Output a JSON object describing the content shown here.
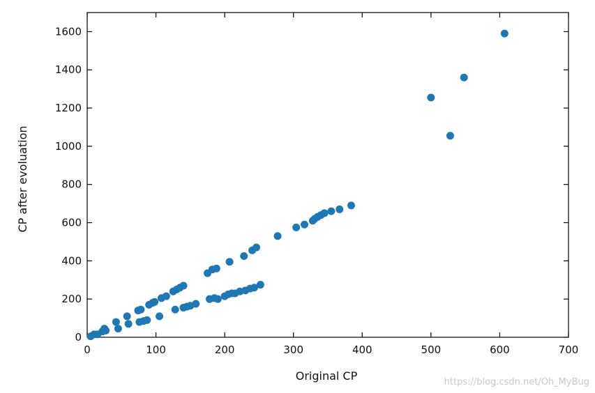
{
  "chart_data": {
    "type": "scatter",
    "title": "",
    "xlabel": "Original CP",
    "ylabel": "CP after evoluation",
    "xlim": [
      0,
      700
    ],
    "ylim": [
      0,
      1700
    ],
    "xticks": [
      0,
      100,
      200,
      300,
      400,
      500,
      600,
      700
    ],
    "yticks": [
      0,
      200,
      400,
      600,
      800,
      1000,
      1200,
      1400,
      1600
    ],
    "grid": false,
    "legend": "none",
    "marker_color": "#1f77b4",
    "series": [
      {
        "points": [
          [
            5,
            5
          ],
          [
            10,
            15
          ],
          [
            15,
            15
          ],
          [
            22,
            30
          ],
          [
            25,
            45
          ],
          [
            27,
            35
          ],
          [
            42,
            80
          ],
          [
            45,
            45
          ],
          [
            58,
            110
          ],
          [
            60,
            70
          ],
          [
            74,
            140
          ],
          [
            78,
            145
          ],
          [
            76,
            80
          ],
          [
            82,
            85
          ],
          [
            87,
            90
          ],
          [
            90,
            170
          ],
          [
            95,
            180
          ],
          [
            98,
            185
          ],
          [
            105,
            110
          ],
          [
            108,
            205
          ],
          [
            115,
            215
          ],
          [
            125,
            240
          ],
          [
            130,
            250
          ],
          [
            135,
            260
          ],
          [
            140,
            270
          ],
          [
            128,
            145
          ],
          [
            140,
            155
          ],
          [
            145,
            160
          ],
          [
            150,
            165
          ],
          [
            158,
            175
          ],
          [
            175,
            335
          ],
          [
            182,
            355
          ],
          [
            188,
            360
          ],
          [
            178,
            200
          ],
          [
            185,
            205
          ],
          [
            190,
            200
          ],
          [
            200,
            215
          ],
          [
            205,
            225
          ],
          [
            210,
            230
          ],
          [
            215,
            230
          ],
          [
            222,
            240
          ],
          [
            207,
            395
          ],
          [
            228,
            425
          ],
          [
            240,
            455
          ],
          [
            246,
            470
          ],
          [
            230,
            245
          ],
          [
            237,
            255
          ],
          [
            243,
            260
          ],
          [
            252,
            275
          ],
          [
            277,
            530
          ],
          [
            304,
            575
          ],
          [
            316,
            590
          ],
          [
            328,
            610
          ],
          [
            331,
            620
          ],
          [
            335,
            630
          ],
          [
            340,
            640
          ],
          [
            345,
            650
          ],
          [
            355,
            660
          ],
          [
            367,
            670
          ],
          [
            384,
            690
          ],
          [
            500,
            1255
          ],
          [
            528,
            1055
          ],
          [
            548,
            1360
          ],
          [
            607,
            1590
          ]
        ]
      }
    ]
  },
  "watermark": "https://blog.csdn.net/Oh_MyBug"
}
